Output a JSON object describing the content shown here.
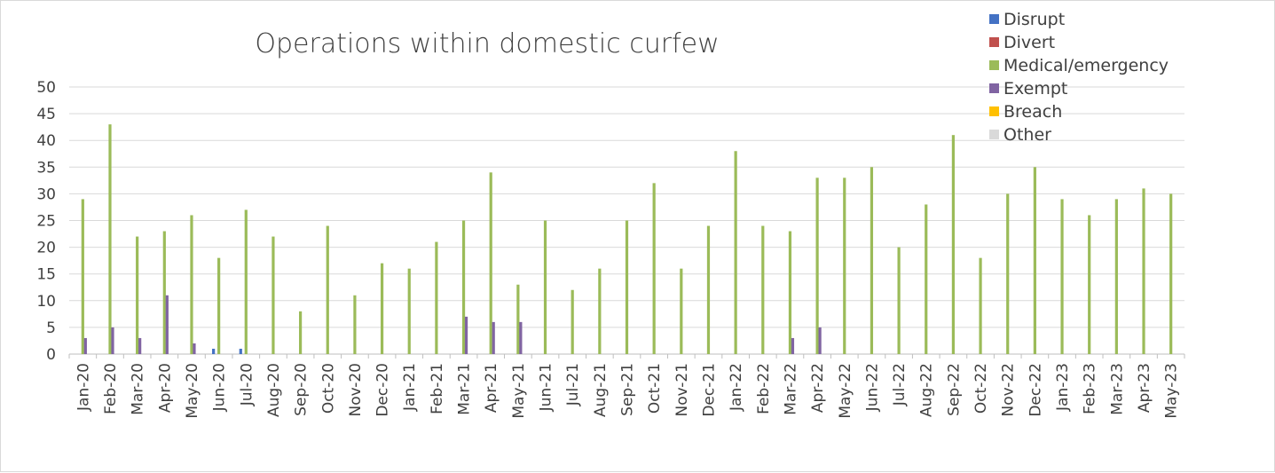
{
  "chart_data": {
    "type": "bar",
    "title": "Operations within domestic curfew",
    "xlabel": "",
    "ylabel": "",
    "ylim": [
      0,
      50
    ],
    "yticks": [
      0,
      5,
      10,
      15,
      20,
      25,
      30,
      35,
      40,
      45,
      50
    ],
    "grid": true,
    "legend_position": "top-right",
    "categories": [
      "Jan-20",
      "Feb-20",
      "Mar-20",
      "Apr-20",
      "May-20",
      "Jun-20",
      "Jul-20",
      "Aug-20",
      "Sep-20",
      "Oct-20",
      "Nov-20",
      "Dec-20",
      "Jan-21",
      "Feb-21",
      "Mar-21",
      "Apr-21",
      "May-21",
      "Jun-21",
      "Jul-21",
      "Aug-21",
      "Sep-21",
      "Oct-21",
      "Nov-21",
      "Dec-21",
      "Jan-22",
      "Feb-22",
      "Mar-22",
      "Apr-22",
      "May-22",
      "Jun-22",
      "Jul-22",
      "Aug-22",
      "Sep-22",
      "Oct-22",
      "Nov-22",
      "Dec-22",
      "Jan-23",
      "Feb-23",
      "Mar-23",
      "Apr-23",
      "May-23"
    ],
    "series": [
      {
        "name": "Disrupt",
        "color": "#4472c4",
        "values": [
          0,
          0,
          0,
          0,
          0,
          1,
          1,
          0,
          0,
          0,
          0,
          0,
          0,
          0,
          0,
          0,
          0,
          0,
          0,
          0,
          0,
          0,
          0,
          0,
          0,
          0,
          0,
          0,
          0,
          0,
          0,
          0,
          0,
          0,
          0,
          0,
          0,
          0,
          0,
          0,
          0
        ]
      },
      {
        "name": "Divert",
        "color": "#c0504d",
        "values": [
          0,
          0,
          0,
          0,
          0,
          0,
          0,
          0,
          0,
          0,
          0,
          0,
          0,
          0,
          0,
          0,
          0,
          0,
          0,
          0,
          0,
          0,
          0,
          0,
          0,
          0,
          0,
          0,
          0,
          0,
          0,
          0,
          0,
          0,
          0,
          0,
          0,
          0,
          0,
          0,
          0
        ]
      },
      {
        "name": "Medical/emergency",
        "color": "#9bbb59",
        "values": [
          29,
          43,
          22,
          23,
          26,
          18,
          27,
          22,
          8,
          24,
          11,
          17,
          16,
          21,
          25,
          34,
          13,
          25,
          12,
          16,
          25,
          32,
          16,
          24,
          38,
          24,
          23,
          33,
          33,
          35,
          20,
          28,
          41,
          18,
          30,
          35,
          29,
          26,
          29,
          31,
          30
        ]
      },
      {
        "name": "Exempt",
        "color": "#8064a2",
        "values": [
          3,
          5,
          3,
          11,
          2,
          0,
          0,
          0,
          0,
          0,
          0,
          0,
          0,
          0,
          7,
          6,
          6,
          0,
          0,
          0,
          0,
          0,
          0,
          0,
          0,
          0,
          3,
          5,
          0,
          0,
          0,
          0,
          0,
          0,
          0,
          0,
          0,
          0,
          0,
          0,
          0
        ]
      },
      {
        "name": "Breach",
        "color": "#ffc000",
        "values": [
          0,
          0,
          0,
          0,
          0,
          0,
          0,
          0,
          0,
          0,
          0,
          0,
          0,
          0,
          0,
          0,
          0,
          0,
          0,
          0,
          0,
          0,
          0,
          0,
          0,
          0,
          0,
          0,
          0,
          0,
          0,
          0,
          0,
          0,
          0,
          0,
          0,
          0,
          0,
          0,
          0
        ]
      },
      {
        "name": "Other",
        "color": "#d9d9d9",
        "values": [
          0,
          0,
          0,
          0,
          0,
          0,
          0,
          0,
          0,
          0,
          0,
          0,
          0,
          0,
          0,
          0,
          0,
          0,
          0,
          0,
          0,
          0,
          0,
          0,
          0,
          0,
          0,
          0,
          0,
          0,
          0,
          0,
          0,
          0,
          0,
          0,
          0,
          0,
          0,
          0,
          0
        ]
      }
    ]
  }
}
